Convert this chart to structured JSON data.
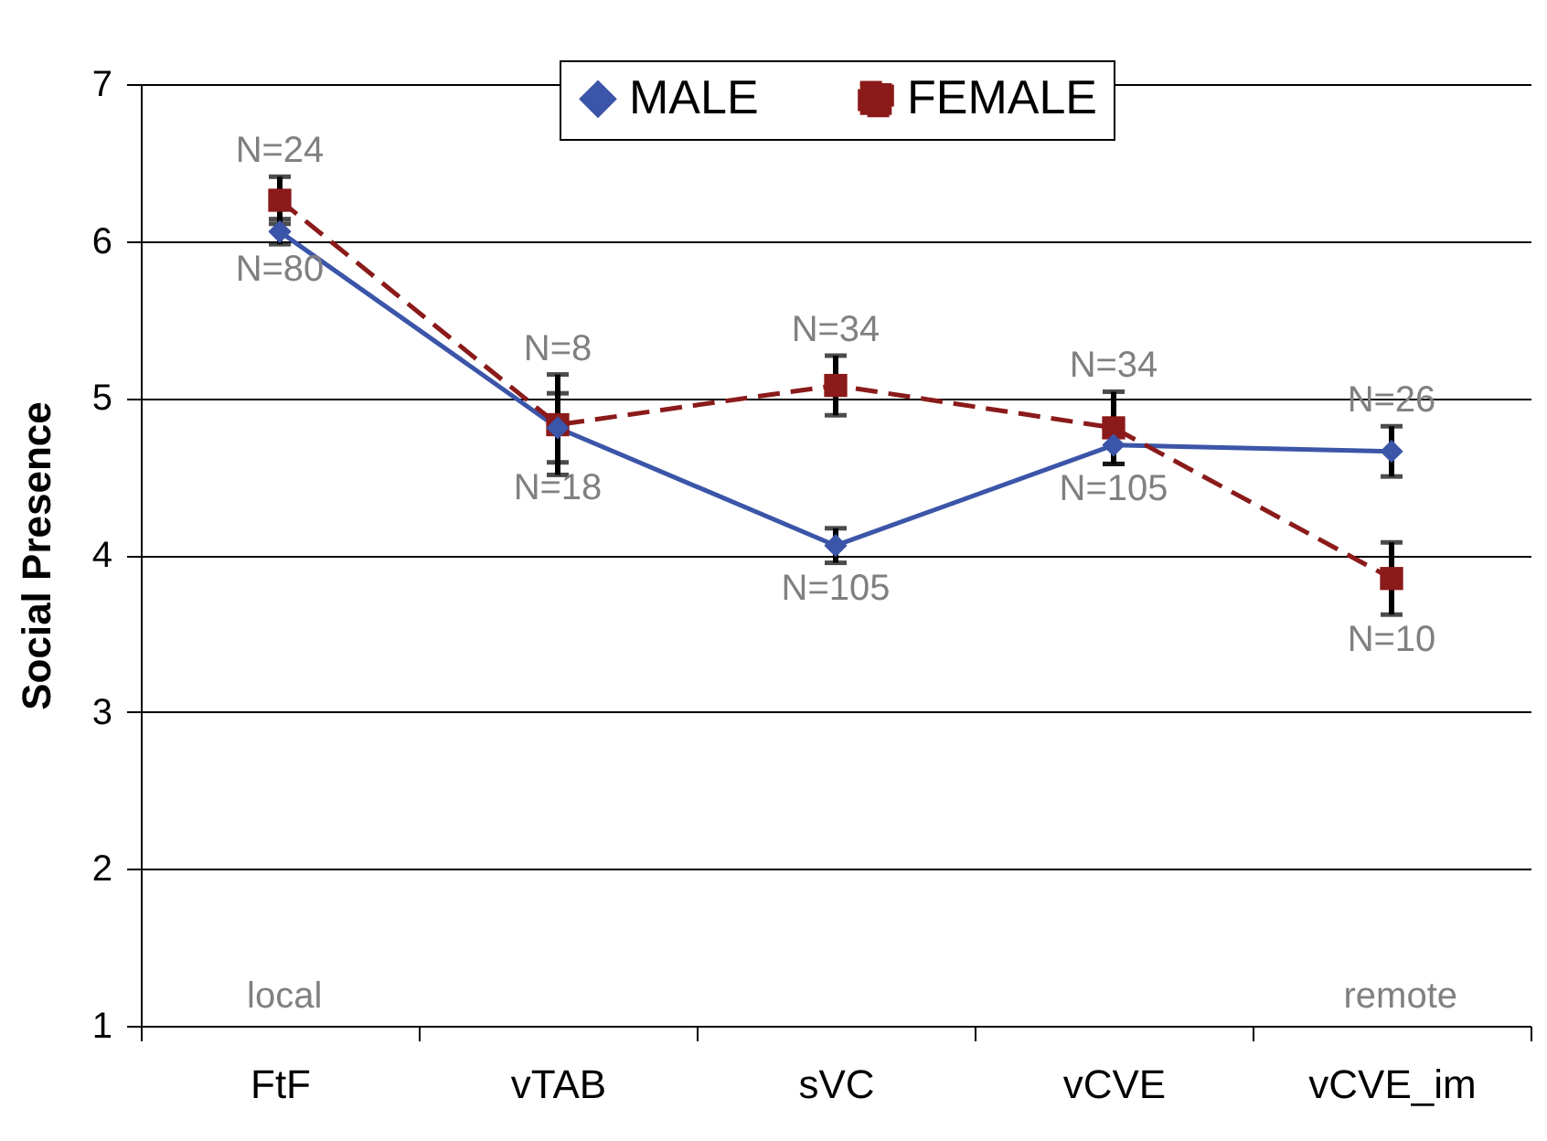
{
  "chart_data": {
    "type": "line",
    "ylabel": "Social Presence",
    "categories": [
      "FtF",
      "vTAB",
      "sVC",
      "vCVE",
      "vCVE_im"
    ],
    "series": [
      {
        "name": "MALE",
        "color": "#3b55a8",
        "marker": "diamond",
        "line_style": "solid",
        "values": [
          6.06,
          4.81,
          4.06,
          4.7,
          4.66
        ],
        "errors": [
          0.08,
          0.22,
          0.11,
          0.12,
          0.16
        ]
      },
      {
        "name": "FEMALE",
        "color": "#8b1a1a",
        "marker": "square",
        "line_style": "dashed",
        "values": [
          6.26,
          4.83,
          5.08,
          4.81,
          3.85
        ],
        "errors": [
          0.15,
          0.32,
          0.19,
          0.23,
          0.23
        ]
      }
    ],
    "ylim": [
      1,
      7
    ],
    "yticks": [
      1,
      2,
      3,
      4,
      5,
      6,
      7
    ],
    "grid": "y",
    "legend": "top",
    "annotations": [
      {
        "text": "N=24",
        "x": "FtF",
        "y": 6.26
      },
      {
        "text": "N=80",
        "x": "FtF",
        "y": 6.06
      },
      {
        "text": "N=8",
        "x": "vTAB",
        "y": 4.83
      },
      {
        "text": "N=18",
        "x": "vTAB",
        "y": 4.81
      },
      {
        "text": "N=34",
        "x": "sVC",
        "y": 5.08
      },
      {
        "text": "N=105",
        "x": "sVC",
        "y": 4.06
      },
      {
        "text": "N=34",
        "x": "vCVE",
        "y": 4.81
      },
      {
        "text": "N=105",
        "x": "vCVE",
        "y": 4.7
      },
      {
        "text": "N=26",
        "x": "vCVE_im",
        "y": 4.66
      },
      {
        "text": "N=10",
        "x": "vCVE_im",
        "y": 3.85
      },
      "local",
      "remote"
    ]
  }
}
